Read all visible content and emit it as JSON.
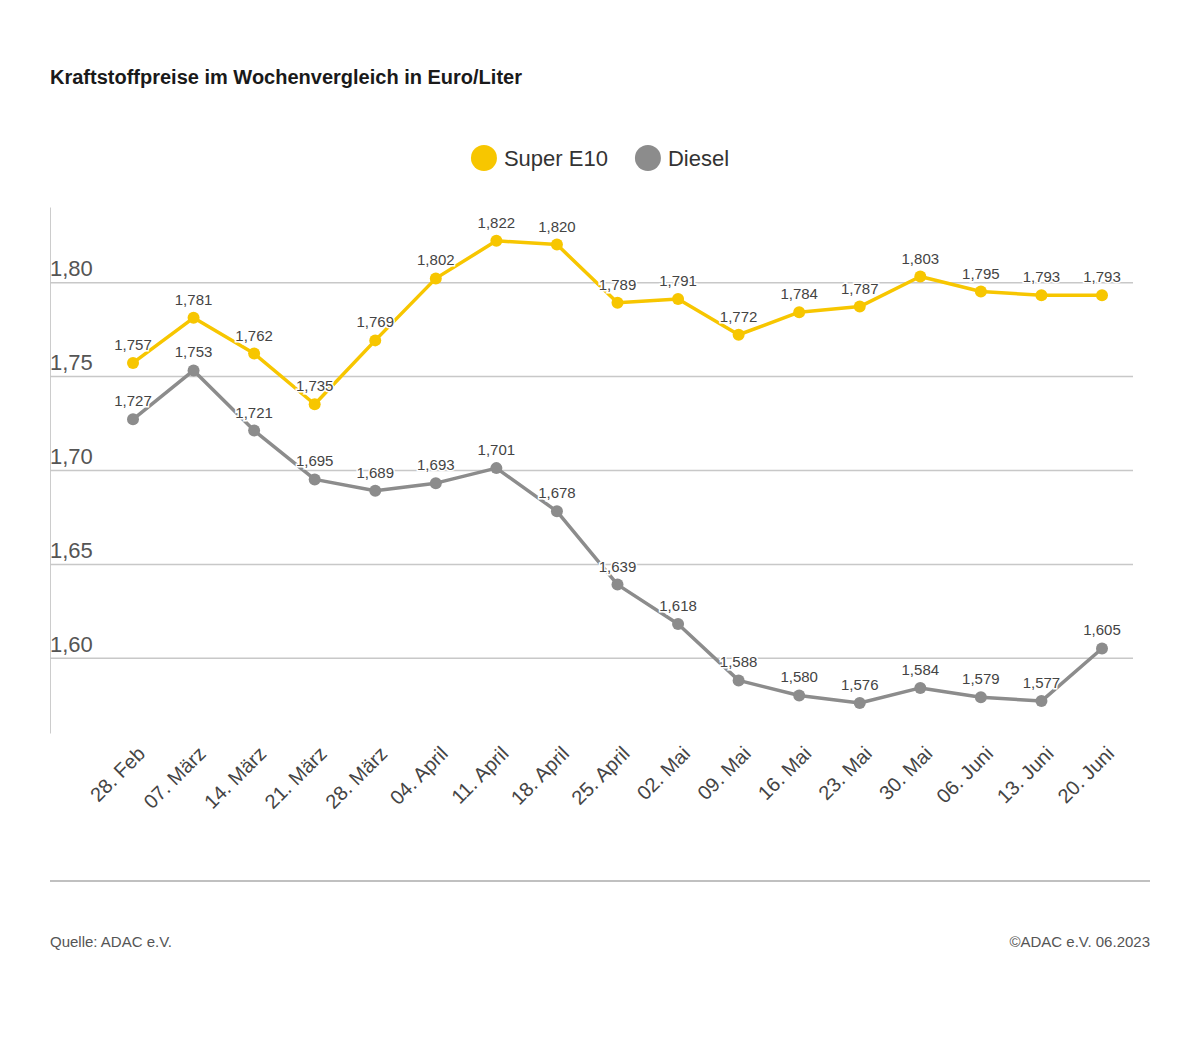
{
  "chart_data": {
    "type": "line",
    "title": "Kraftstoffpreise im Wochenvergleich in Euro/Liter",
    "categories": [
      "28. Feb",
      "07. März",
      "14. März",
      "21. März",
      "28. März",
      "04. April",
      "11. April",
      "18. April",
      "25. April",
      "02. Mai",
      "09. Mai",
      "16. Mai",
      "23. Mai",
      "30. Mai",
      "06. Juni",
      "13. Juni",
      "20. Juni"
    ],
    "series": [
      {
        "name": "Super E10",
        "color": "#f7c600",
        "marker": "circle",
        "values": [
          1.757,
          1.781,
          1.762,
          1.735,
          1.769,
          1.802,
          1.822,
          1.82,
          1.789,
          1.791,
          1.772,
          1.784,
          1.787,
          1.803,
          1.795,
          1.793,
          1.793
        ],
        "value_labels": [
          "1,757",
          "1,781",
          "1,762",
          "1,735",
          "1,769",
          "1,802",
          "1,822",
          "1,820",
          "1,789",
          "1,791",
          "1,772",
          "1,784",
          "1,787",
          "1,803",
          "1,795",
          "1,793",
          "1,793"
        ]
      },
      {
        "name": "Diesel",
        "color": "#8c8c8c",
        "marker": "circle",
        "values": [
          1.727,
          1.753,
          1.721,
          1.695,
          1.689,
          1.693,
          1.701,
          1.678,
          1.639,
          1.618,
          1.588,
          1.58,
          1.576,
          1.584,
          1.579,
          1.577,
          1.605
        ],
        "value_labels": [
          "1,727",
          "1,753",
          "1,721",
          "1,695",
          "1,689",
          "1,693",
          "1,701",
          "1,678",
          "1,639",
          "1,618",
          "1,588",
          "1,580",
          "1,576",
          "1,584",
          "1,579",
          "1,577",
          "1,605"
        ]
      }
    ],
    "ylim": [
      1.56,
      1.84
    ],
    "yticks": [
      {
        "value": 1.6,
        "label": "1,60"
      },
      {
        "value": 1.65,
        "label": "1,65"
      },
      {
        "value": 1.7,
        "label": "1,70"
      },
      {
        "value": 1.75,
        "label": "1,75"
      },
      {
        "value": 1.8,
        "label": "1,80"
      }
    ],
    "grid": true,
    "data_labels": true,
    "legend": "top"
  },
  "footer": {
    "source": "Quelle: ADAC e.V.",
    "copyright": "©ADAC e.V. 06.2023"
  }
}
